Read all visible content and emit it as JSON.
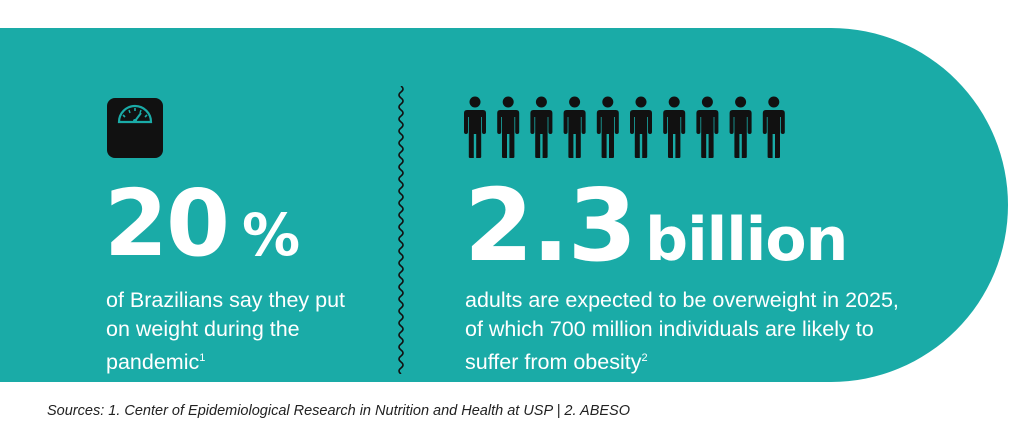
{
  "colors": {
    "accent": "#1aaba7",
    "text": "#ffffff",
    "icon": "#111111"
  },
  "left_stat": {
    "icon": "bathroom-scale-icon",
    "value": "20",
    "unit": "%",
    "description": "of Brazilians say they put on weight during the pandemic",
    "footnote": "1"
  },
  "right_stat": {
    "icon": "person-icon",
    "icon_count": 10,
    "value": "2.3",
    "unit": "billion",
    "description": "adults are expected to be overweight in 2025, of which 700 million individuals are likely to suffer from obesity",
    "footnote": "2"
  },
  "sources": "Sources: 1. Center of Epidemiological Research in Nutrition and Health at USP | 2. ABESO"
}
